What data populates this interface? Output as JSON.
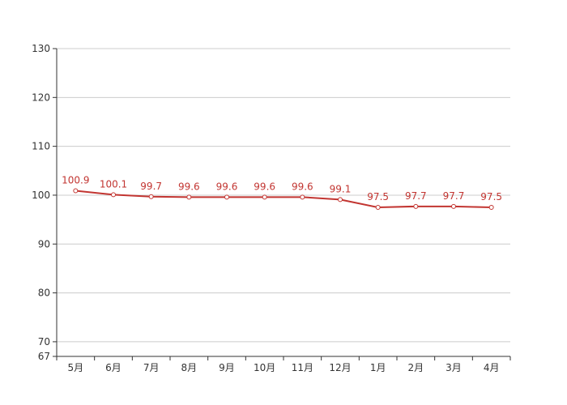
{
  "chart_data": {
    "type": "line",
    "categories": [
      "5月",
      "6月",
      "7月",
      "8月",
      "9月",
      "10月",
      "11月",
      "12月",
      "1月",
      "2月",
      "3月",
      "4月"
    ],
    "series": [
      {
        "values": [
          100.9,
          100.1,
          99.7,
          99.6,
          99.6,
          99.6,
          99.6,
          99.1,
          97.5,
          97.7,
          97.7,
          97.5
        ],
        "color": "#c23531"
      }
    ],
    "ylim": [
      67,
      130
    ],
    "yticks": [
      67,
      70,
      80,
      90,
      100,
      110,
      120,
      130
    ],
    "grid": true,
    "data_labels": true
  }
}
